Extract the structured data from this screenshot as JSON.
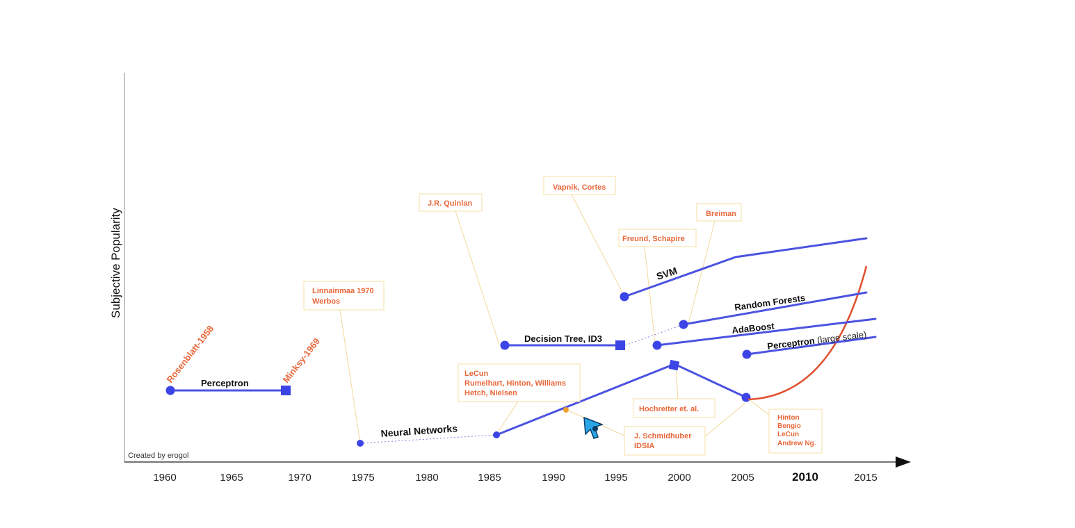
{
  "axis": {
    "ylabel": "Subjective Popularity",
    "credit": "Created by erogol",
    "x_ticks": [
      "1960",
      "1965",
      "1970",
      "1975",
      "1980",
      "1985",
      "1990",
      "1995",
      "2000",
      "2005",
      "2010",
      "2015"
    ]
  },
  "series_labels": {
    "perceptron": "Perceptron",
    "neural_networks": "Neural Networks",
    "decision_tree": "Decision Tree, ID3",
    "svm": "SVM",
    "random_forests": "Random Forests",
    "adaboost": "AdaBoost",
    "perceptron_large_prefix": "Perceptron",
    "perceptron_large_suffix": " (large scale)"
  },
  "annotations": {
    "rosenblatt": "Rosenblatt-1958",
    "minsky": "Minksy-1969",
    "linnainmaa": [
      "Linnainmaa 1970",
      "Werbos"
    ],
    "quinlan": "J.R. Quinlan",
    "vapnik": "Vapnik, Cortes",
    "breiman": "Breiman",
    "freund": "Freund, Schapire",
    "lecun": [
      "LeCun",
      "Rumelhart, Hinton, Williams",
      "Hetch, Nielsen"
    ],
    "hochreiter": "Hochreiter et. al.",
    "schmidhuber": [
      "J. Schmidhuber",
      "IDSIA"
    ],
    "hinton": [
      "Hinton",
      "Bengio",
      "LeCun",
      "Andrew Ng."
    ]
  },
  "colors": {
    "series": "#4b53e0",
    "deep_learning": "#e0502e",
    "annotation_text": "#e8673a",
    "annotation_border": "#f6dfa6",
    "cursor": "#2aa6e8"
  },
  "icons": {
    "cursor": "pointer-cursor-icon"
  }
}
